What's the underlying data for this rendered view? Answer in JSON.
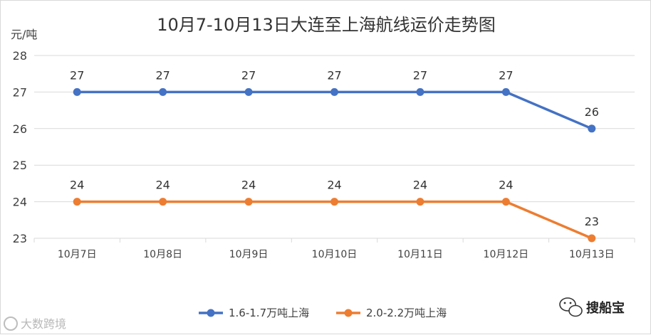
{
  "chart_data": {
    "type": "line",
    "title": "10月7-10月13日大连至上海航线运价走势图",
    "ylabel": "元/吨",
    "xlabel": "",
    "categories": [
      "10月7日",
      "10月8日",
      "10月9日",
      "10月10日",
      "10月11日",
      "10月12日",
      "10月13日"
    ],
    "ylim": [
      23,
      28
    ],
    "yticks": [
      23,
      24,
      25,
      26,
      27,
      28
    ],
    "grid": true,
    "legend_position": "bottom",
    "series": [
      {
        "name": "1.6-1.7万吨上海",
        "color": "#4472c4",
        "values": [
          27,
          27,
          27,
          27,
          27,
          27,
          26
        ]
      },
      {
        "name": "2.0-2.2万吨上海",
        "color": "#ed7d31",
        "values": [
          24,
          24,
          24,
          24,
          24,
          24,
          23
        ]
      }
    ]
  },
  "watermark": {
    "text": "大数跨境"
  },
  "brand": {
    "text": "搜船宝"
  }
}
